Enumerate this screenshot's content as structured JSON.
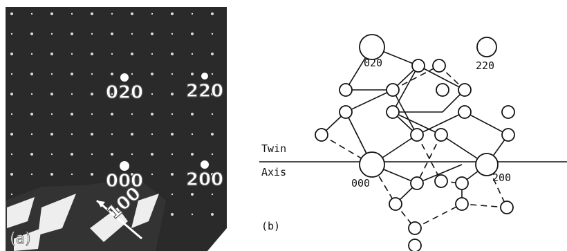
{
  "panel_a": {
    "label": "(a)",
    "spots": {
      "s020": "020",
      "s220": "220",
      "s000": "000",
      "s200": "200"
    },
    "direction": "100"
  },
  "panel_b": {
    "label": "(b)",
    "spots": {
      "s020": "020",
      "s220": "220",
      "s000": "000",
      "s200": "200"
    },
    "twin": "Twin",
    "axis": "Axis"
  }
}
